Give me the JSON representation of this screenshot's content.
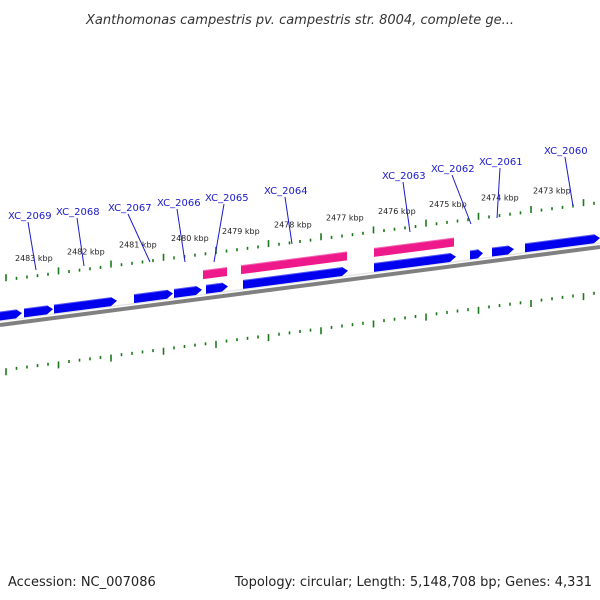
{
  "title": "Xanthomonas campestris pv. campestris str. 8004, complete ge...",
  "footer": {
    "accession": "Accession: NC_007086",
    "summary": "Topology: circular; Length: 5,148,708 bp; Genes: 4,331"
  },
  "colors": {
    "forward_gene": "#0000ee",
    "reverse_gene": "#ee1a8c",
    "tick": "#1a7a1a",
    "backbone": "#808080",
    "label": "#1a1acc"
  },
  "scale_labels": [
    "2483 kbp",
    "2482 kbp",
    "2481 kbp",
    "2480 kbp",
    "2479 kbp",
    "2478 kbp",
    "2477 kbp",
    "2476 kbp",
    "2475 kbp",
    "2474 kbp",
    "2473 kbp"
  ],
  "gene_labels": [
    "XC_2069",
    "XC_2068",
    "XC_2067",
    "XC_2066",
    "XC_2065",
    "XC_2064",
    "XC_2063",
    "XC_2062",
    "XC_2061",
    "XC_2060"
  ]
}
